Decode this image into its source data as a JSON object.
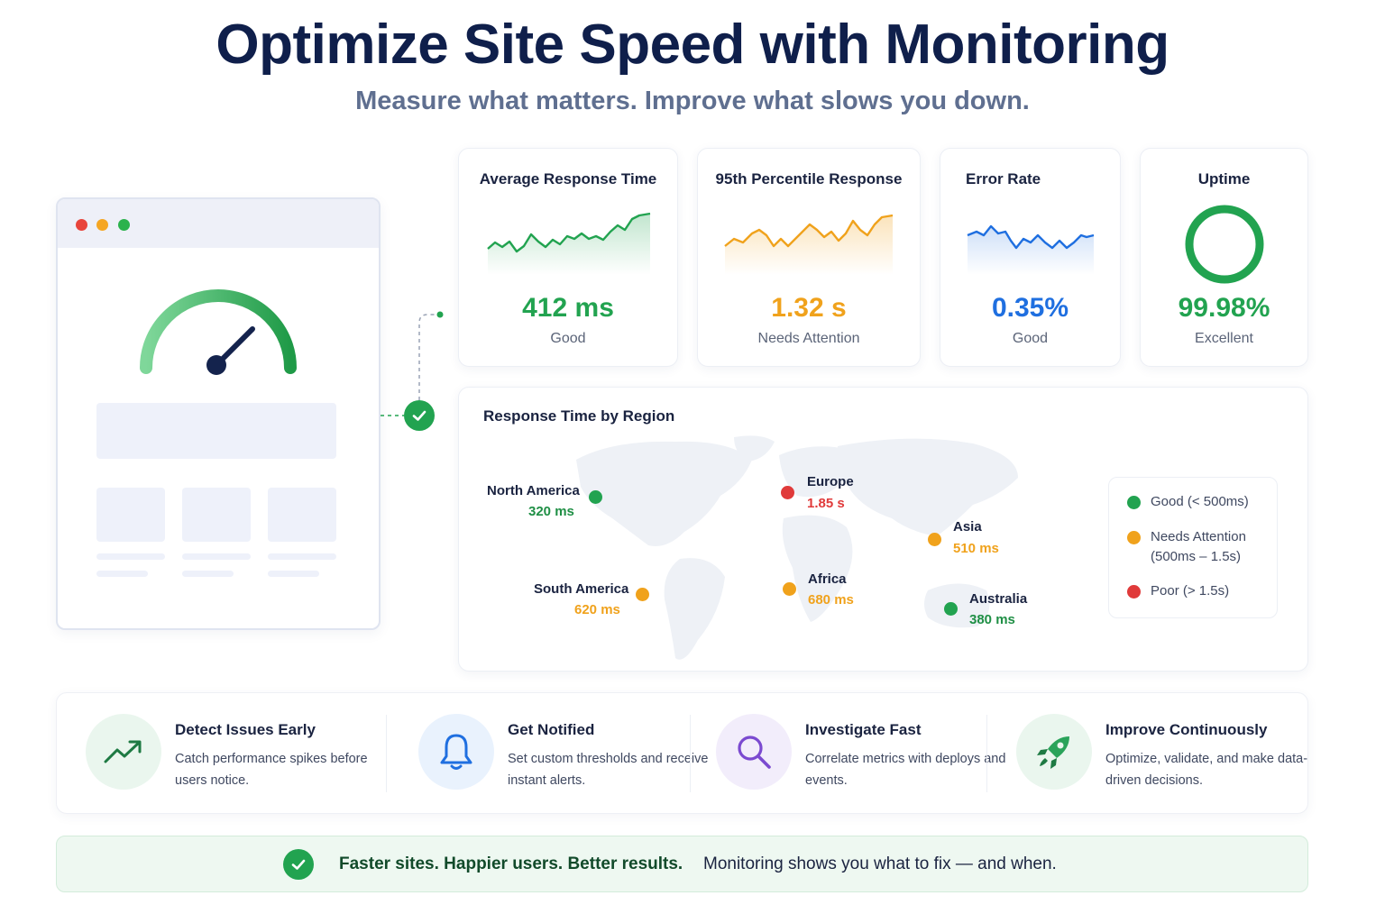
{
  "header": {
    "title": "Optimize Site Speed with Monitoring",
    "subtitle": "Measure what matters. Improve what slows you down."
  },
  "browser": {
    "dot_colors": [
      "#e8453c",
      "#f5a623",
      "#2bb24c"
    ],
    "gauge_icon": "speedometer-icon"
  },
  "metrics": [
    {
      "title": "Average Response Time",
      "value": "412 ms",
      "status": "Good",
      "color": "#22a350",
      "icon": "sparkline-chart"
    },
    {
      "title": "95th Percentile Response",
      "value": "1.32 s",
      "status": "Needs Attention",
      "color": "#f0a21c",
      "icon": "sparkline-chart"
    },
    {
      "title": "Error Rate",
      "value": "0.35%",
      "status": "Good",
      "color": "#1f6fe0",
      "icon": "sparkline-chart"
    },
    {
      "title": "Uptime",
      "value": "99.98%",
      "status": "Excellent",
      "color": "#22a350",
      "icon": "ring-icon"
    }
  ],
  "region_map": {
    "title": "Response Time by Region",
    "regions": [
      {
        "name": "North America",
        "value": "320 ms",
        "color": "#22a350"
      },
      {
        "name": "Europe",
        "value": "1.85 s",
        "color": "#e03a3a"
      },
      {
        "name": "Asia",
        "value": "510 ms",
        "color": "#f0a21c"
      },
      {
        "name": "South America",
        "value": "620 ms",
        "color": "#f0a21c"
      },
      {
        "name": "Africa",
        "value": "680 ms",
        "color": "#f0a21c"
      },
      {
        "name": "Australia",
        "value": "380 ms",
        "color": "#22a350"
      }
    ],
    "legend": [
      {
        "label": "Good (< 500ms)",
        "color": "#22a350"
      },
      {
        "label": "Needs Attention (500ms – 1.5s)",
        "color": "#f0a21c"
      },
      {
        "label": "Poor (> 1.5s)",
        "color": "#e03a3a"
      }
    ]
  },
  "features": [
    {
      "title": "Detect Issues Early",
      "desc": "Catch performance spikes before users notice.",
      "icon": "trend-up-icon",
      "bg": "#eaf6ee"
    },
    {
      "title": "Get Notified",
      "desc": "Set custom thresholds and receive instant alerts.",
      "icon": "bell-icon",
      "bg": "#e9f2fd"
    },
    {
      "title": "Investigate Fast",
      "desc": "Correlate metrics with deploys and events.",
      "icon": "magnifier-icon",
      "bg": "#f2edfb"
    },
    {
      "title": "Improve Continuously",
      "desc": "Optimize, validate, and make data-driven decisions.",
      "icon": "rocket-icon",
      "bg": "#eaf6ee"
    }
  ],
  "banner": {
    "strong": "Faster sites. Happier users. Better results.",
    "rest": "Monitoring shows you what to fix — and when."
  }
}
